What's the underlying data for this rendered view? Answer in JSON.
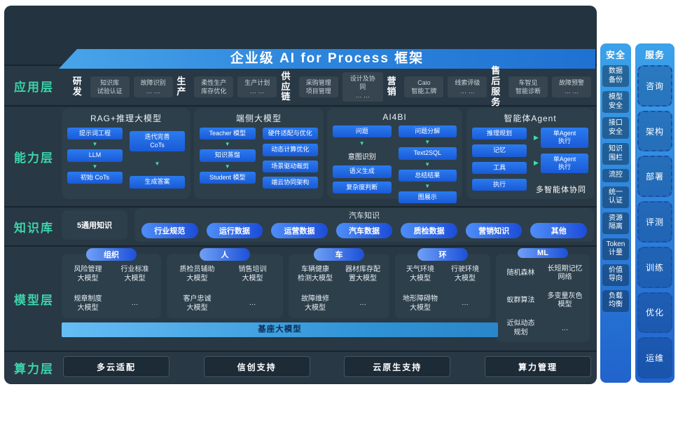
{
  "banner": {
    "title": "企业级 AI for Process 框架"
  },
  "layer_labels": {
    "app": "应用层",
    "capability": "能力层",
    "knowledge": "知识库",
    "model": "模型层",
    "compute": "算力层"
  },
  "app_layer": {
    "groups": [
      {
        "label": "研发",
        "items": [
          "知识库\n试验认证",
          "故障识别\n… …"
        ]
      },
      {
        "label": "生产",
        "items": [
          "柔性生产\n库存优化",
          "生产计划\n… …"
        ]
      },
      {
        "label": "供应\n链",
        "items": [
          "采购管理\n项目管理",
          "设计及协同\n… …"
        ]
      },
      {
        "label": "营销",
        "items": [
          "Caio\n智能工牌",
          "线索评级\n… …"
        ]
      },
      {
        "label": "售后\n服务",
        "items": [
          "车智见\n智能诊断",
          "故障预警\n… …"
        ]
      }
    ]
  },
  "capability_layer": {
    "rag": {
      "title": "RAG+推理大模型",
      "left_flow": [
        "提示词工程",
        "LLM",
        "初始 CoTs"
      ],
      "right_flow": [
        "迭代完善\nCoTs",
        "生成答案"
      ]
    },
    "edge": {
      "title": "端侧大模型",
      "left_flow": [
        "Teacher 模型",
        "知识蒸馏",
        "Student 模型"
      ],
      "right_list": [
        "硬件适配与优化",
        "动态计算优化",
        "场景驱动裁剪",
        "端云协同架构"
      ]
    },
    "ai4bi": {
      "title": "AI4BI",
      "left_steps": [
        {
          "text": "问题",
          "style": "box",
          "arrow_after": true
        },
        {
          "text": "意图识别",
          "style": "plain"
        },
        {
          "text": "语义生成",
          "style": "box"
        },
        {
          "text": "复杂度判断",
          "style": "box"
        }
      ],
      "right_flow": [
        "问题分解",
        "Text2SQL",
        "总结结果",
        "图展示"
      ]
    },
    "agent": {
      "title": "智能体Agent",
      "left_list": [
        "推理规划",
        "记忆",
        "工具",
        "执行"
      ],
      "right_list": [
        "单Agent\n执行",
        "单Agent\n执行"
      ],
      "caption": "多智能体协同"
    }
  },
  "knowledge_layer": {
    "general": "5通用知识",
    "title": "汽车知识",
    "pills": [
      "行业规范",
      "运行数据",
      "运营数据",
      "汽车数据",
      "质检数据",
      "营销知识",
      "其他"
    ]
  },
  "model_layer": {
    "groups": [
      {
        "header": "组织",
        "items": [
          "风险管理\n大模型",
          "行业标准\n大模型",
          "规章制度\n大模型",
          "…"
        ]
      },
      {
        "header": "人",
        "items": [
          "质检员辅助\n大模型",
          "销售培训\n大模型",
          "客户忠诚\n大模型",
          "…"
        ]
      },
      {
        "header": "车",
        "items": [
          "车辆健康\n检测大模型",
          "器材库存配\n置大模型",
          "故障维修\n大模型",
          "…"
        ]
      },
      {
        "header": "环",
        "items": [
          "天气环境\n大模型",
          "行驶环境\n大模型",
          "地形障碍物\n大模型",
          "…"
        ]
      },
      {
        "header": "ML",
        "items": [
          "随机森林",
          "长短期记忆\n网络",
          "蚁群算法",
          "多变量灰色\n模型",
          "近似动态\n规划",
          "…"
        ]
      }
    ],
    "foundation_bar": "基座大模型"
  },
  "compute_layer": {
    "items": [
      "多云适配",
      "信创支持",
      "云原生支持",
      "算力管理"
    ]
  },
  "security_sidebar": {
    "header": "安全",
    "items": [
      "数据\n备份",
      "模型\n安全",
      "接口\n安全",
      "知识\n围栏",
      "流控",
      "统一\n认证",
      "资源\n隔离",
      "Token\n计量",
      "价值\n导向",
      "负载\n均衡"
    ]
  },
  "service_sidebar": {
    "header": "服务",
    "items": [
      "咨询",
      "架构",
      "部署",
      "评测",
      "训练",
      "优化",
      "运维"
    ]
  },
  "colors": {
    "panel_bg": "#233440",
    "accent_teal": "#3dd3ab",
    "banner_blue": "#2e86dd",
    "box_blue": "#1f6ae0",
    "arrow_green": "#39e2a9"
  }
}
